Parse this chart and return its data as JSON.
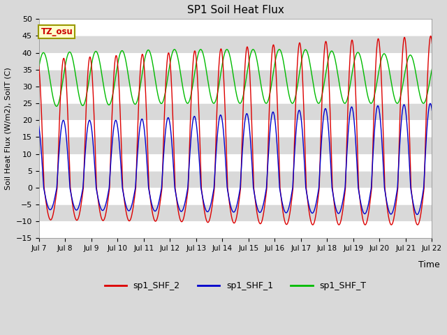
{
  "title": "SP1 Soil Heat Flux",
  "xlabel": "Time",
  "ylabel": "Soil Heat Flux (W/m2), SoilT (C)",
  "ylim": [
    -15,
    50
  ],
  "xlim": [
    0,
    15
  ],
  "x_tick_labels": [
    "Jul 7",
    "Jul 8",
    "Jul 9",
    "Jul 10",
    "Jul 11",
    "Jul 12",
    "Jul 13",
    "Jul 14",
    "Jul 15",
    "Jul 16",
    "Jul 17",
    "Jul 18",
    "Jul 19",
    "Jul 20",
    "Jul 21",
    "Jul 22"
  ],
  "background_color": "#d9d9d9",
  "plot_bg_color": "#d9d9d9",
  "grid_color": "#ffffff",
  "color_shf2": "#dd0000",
  "color_shf1": "#0000cc",
  "color_shft": "#00bb00",
  "tz_label": "TZ_osu",
  "legend_labels": [
    "sp1_SHF_2",
    "sp1_SHF_1",
    "sp1_SHF_T"
  ],
  "n_days": 15,
  "samples_per_day": 96
}
